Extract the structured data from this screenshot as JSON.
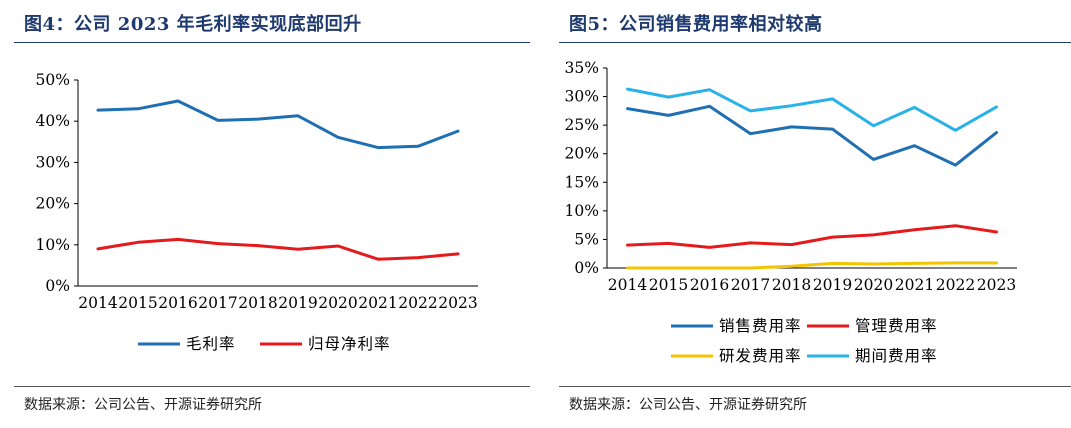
{
  "chart_data": [
    {
      "type": "line",
      "title": "图4：公司 2023 年毛利率实现底部回升",
      "source": "数据来源：公司公告、开源证券研究所",
      "categories": [
        "2014",
        "2015",
        "2016",
        "2017",
        "2018",
        "2019",
        "2020",
        "2021",
        "2022",
        "2023"
      ],
      "ylim": [
        0,
        50
      ],
      "yticks": [
        "0%",
        "10%",
        "20%",
        "30%",
        "40%",
        "50%"
      ],
      "legend_position": "bottom",
      "grid": false,
      "series": [
        {
          "name": "毛利率",
          "color": "#1f6fb3",
          "values": [
            42.7,
            43.0,
            44.9,
            40.2,
            40.5,
            41.3,
            36.1,
            33.6,
            33.9,
            37.6
          ]
        },
        {
          "name": "归母净利率",
          "color": "#e41a1c",
          "values": [
            9.0,
            10.6,
            11.3,
            10.3,
            9.8,
            8.9,
            9.7,
            6.5,
            6.9,
            7.8
          ]
        }
      ]
    },
    {
      "type": "line",
      "title": "图5：公司销售费用率相对较高",
      "source": "数据来源：公司公告、开源证券研究所",
      "categories": [
        "2014",
        "2015",
        "2016",
        "2017",
        "2018",
        "2019",
        "2020",
        "2021",
        "2022",
        "2023"
      ],
      "ylim": [
        0,
        35
      ],
      "yticks": [
        "0%",
        "5%",
        "10%",
        "15%",
        "20%",
        "25%",
        "30%",
        "35%"
      ],
      "legend_position": "bottom",
      "grid": false,
      "series": [
        {
          "name": "销售费用率",
          "color": "#1f6fb3",
          "values": [
            27.9,
            26.7,
            28.3,
            23.5,
            24.7,
            24.3,
            19.0,
            21.4,
            18.0,
            23.7
          ]
        },
        {
          "name": "管理费用率",
          "color": "#e41a1c",
          "values": [
            4.0,
            4.3,
            3.6,
            4.4,
            4.1,
            5.4,
            5.8,
            6.7,
            7.4,
            6.3
          ]
        },
        {
          "name": "研发费用率",
          "color": "#f5c400",
          "values": [
            0.0,
            0.0,
            0.0,
            0.0,
            0.3,
            0.8,
            0.7,
            0.8,
            0.9,
            0.9
          ]
        },
        {
          "name": "期间费用率",
          "color": "#29b2e8",
          "values": [
            31.3,
            29.9,
            31.2,
            27.5,
            28.4,
            29.6,
            24.9,
            28.1,
            24.1,
            28.2
          ]
        }
      ]
    }
  ]
}
